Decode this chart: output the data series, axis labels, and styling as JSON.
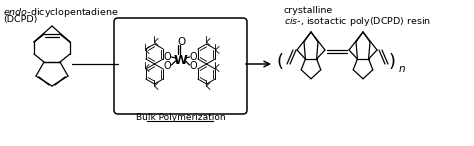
{
  "bg_color": "#ffffff",
  "line_color": "#000000",
  "figsize": [
    4.74,
    1.46
  ],
  "dpi": 100,
  "text_endo": "endo",
  "text_title1": "-dicyclopentadiene",
  "text_title2": "(DCPD)",
  "text_cryst": "crystalline",
  "text_cis": "cis",
  "text_cis2": "-, isotactic poly(DCPD) resin",
  "text_bulk": "Bulk Polymerization",
  "text_n": "n"
}
